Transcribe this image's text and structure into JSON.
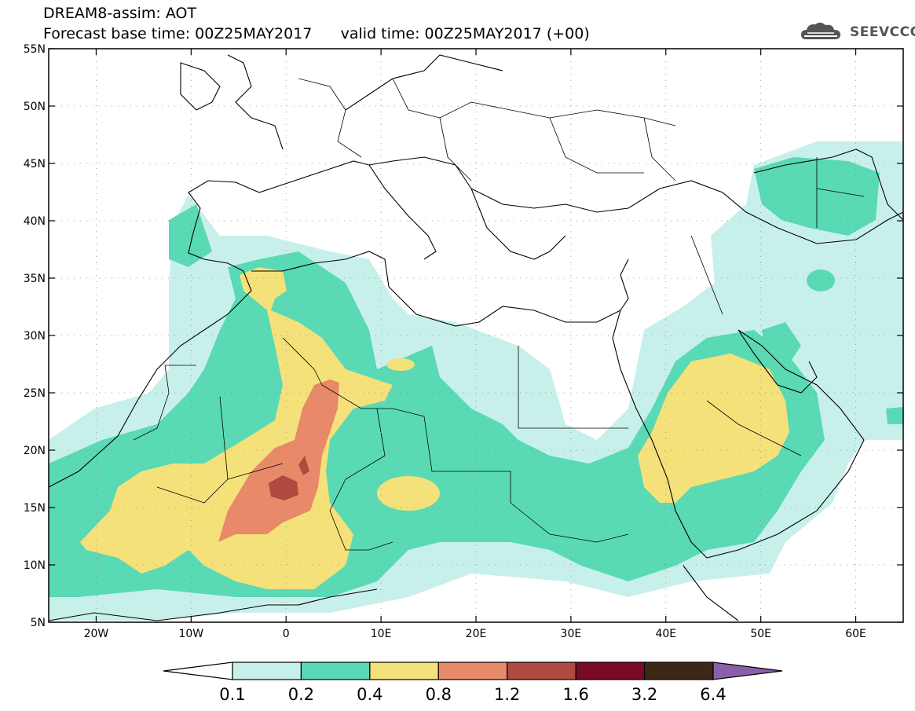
{
  "header": {
    "title_line1": "DREAM8-assim: AOT",
    "title_line2": "Forecast base time: 00Z25MAY2017      valid time: 00Z25MAY2017 (+00)",
    "brand": "SEEVCCC"
  },
  "map": {
    "lon_labels": [
      "20W",
      "10W",
      "0",
      "10E",
      "20E",
      "30E",
      "40E",
      "50E",
      "60E"
    ],
    "lat_labels": [
      "55N",
      "50N",
      "45N",
      "40N",
      "35N",
      "30N",
      "25N",
      "20N",
      "15N",
      "10N",
      "5N"
    ],
    "lon_range": [
      -25,
      65
    ],
    "lat_range": [
      5,
      55
    ],
    "grid": "dotted"
  },
  "colorbar": {
    "labels": [
      "0.1",
      "0.2",
      "0.4",
      "0.8",
      "1.2",
      "1.6",
      "3.2",
      "6.4"
    ],
    "colors": [
      "#c8f0ea",
      "#5ad9b5",
      "#f5e17a",
      "#e8896a",
      "#b04a3f",
      "#7a0a2a",
      "#3d2818",
      "#8a60a8"
    ],
    "below_color": "#ffffff"
  }
}
